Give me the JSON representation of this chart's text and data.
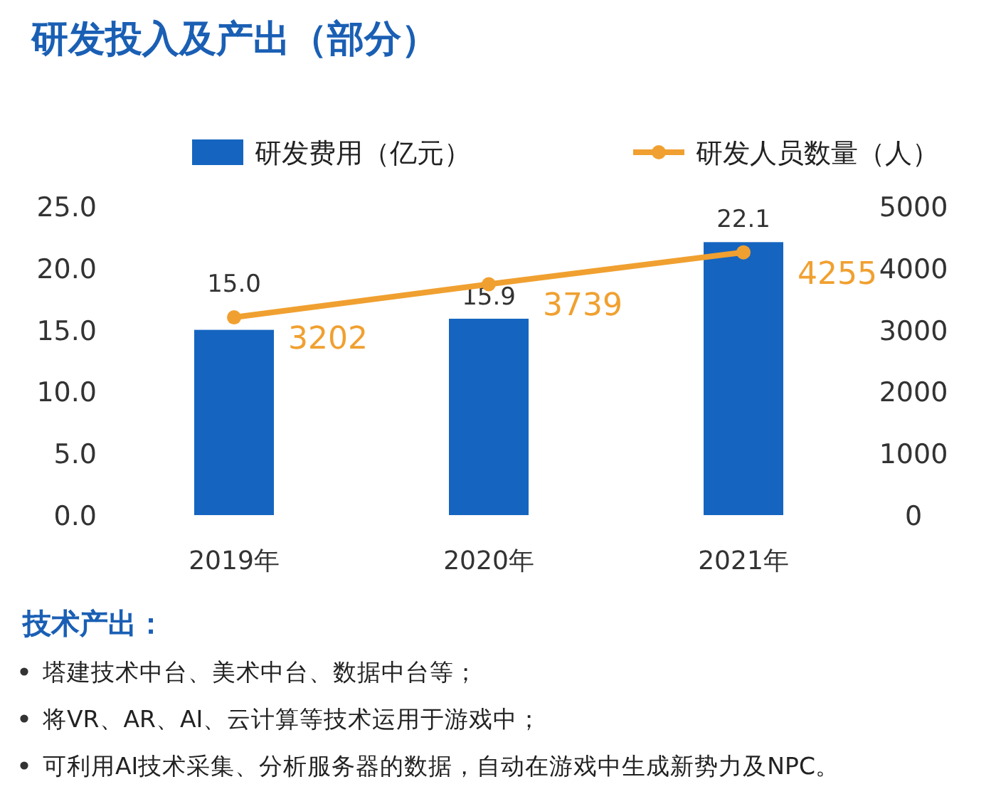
{
  "chart_data": {
    "type": "bar",
    "title": "研发投入及产出（部分）",
    "categories": [
      "2019年",
      "2020年",
      "2021年"
    ],
    "series": [
      {
        "name": "研发费用（亿元）",
        "color": "#1565c0",
        "values": [
          15.0,
          15.9,
          22.1
        ],
        "value_labels": [
          "15.0",
          "15.9",
          "22.1"
        ]
      },
      {
        "name": "研发人员数量（人）",
        "type": "line",
        "axis": "y2",
        "color": "#f0a030",
        "marker": "circle",
        "values": [
          3202,
          3739,
          4255
        ],
        "value_labels": [
          "3202",
          "3739",
          "4255"
        ]
      }
    ],
    "ylim": [
      0,
      25
    ],
    "yticks": [
      {
        "value": 0,
        "label": "0.0"
      },
      {
        "value": 5,
        "label": "5.0"
      },
      {
        "value": 10,
        "label": "10.0"
      },
      {
        "value": 15,
        "label": "15.0"
      },
      {
        "value": 20,
        "label": "20.0"
      },
      {
        "value": 25,
        "label": "25.0"
      }
    ],
    "y2lim": [
      0,
      5000
    ],
    "y2ticks": [
      0,
      1000,
      2000,
      3000,
      4000,
      5000
    ],
    "legend": "top",
    "grid": false,
    "annotations": [
      "技术产出：",
      "塔建技术中台、美术中台、数据中台等；",
      "将VR、AR、AI、云计算等技术运用于游戏中；",
      "可利用AI技术采集、分析服务器的数据，自动在游戏中生成新势力及NPC。"
    ]
  }
}
